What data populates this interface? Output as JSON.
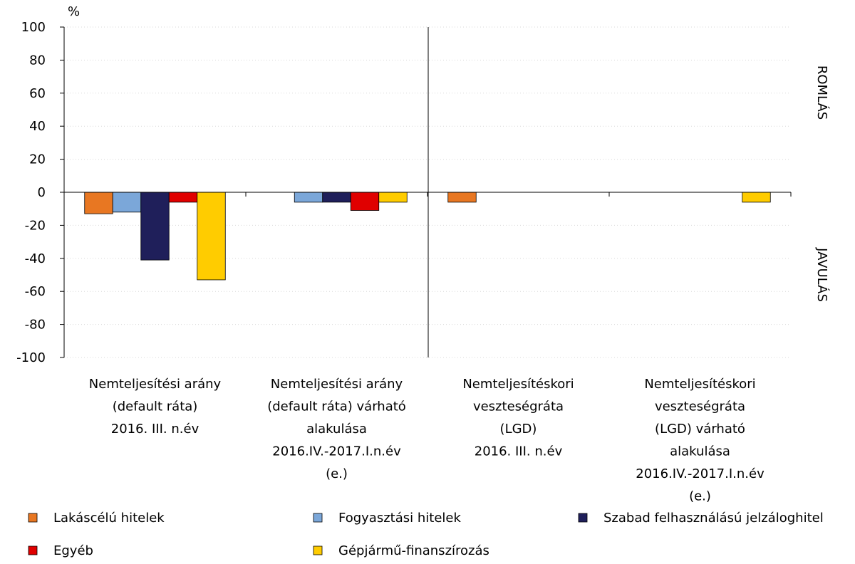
{
  "chart_data": {
    "type": "bar",
    "unit_label": "%",
    "side_labels": [
      "ROMLÁS",
      "JAVULÁS"
    ],
    "categories": [
      "Nemteljesítési arány\n(default ráta)\n2016. III. n.év",
      "Nemteljesítési arány\n(default ráta) várható\nalakulása\n2016.IV.-2017.I.n.év\n(e.)",
      "Nemteljesítéskori\nveszteségráta\n(LGD)\n2016. III. n.év",
      "Nemteljesítéskori\nveszteségráta\n(LGD) várható\nalakulása\n2016.IV.-2017.I.n.év\n(e.)"
    ],
    "series": [
      {
        "name": "Lakáscélú hitelek",
        "color": "#e87722",
        "values": [
          -13,
          0,
          -6,
          0
        ]
      },
      {
        "name": "Fogyasztási hitelek",
        "color": "#7ba7d9",
        "values": [
          -12,
          -6,
          0,
          0
        ]
      },
      {
        "name": "Szabad felhasználású jelzáloghitel",
        "color": "#1f1f5a",
        "values": [
          -41,
          -6,
          0,
          0
        ]
      },
      {
        "name": "Egyéb",
        "color": "#e00000",
        "values": [
          -6,
          -11,
          0,
          0
        ]
      },
      {
        "name": "Gépjármű-finanszírozás",
        "color": "#ffcc00",
        "values": [
          -53,
          -6,
          0,
          -6
        ]
      }
    ],
    "ylim": [
      -100,
      100
    ],
    "yticks": [
      -100,
      -80,
      -60,
      -40,
      -20,
      0,
      20,
      40,
      60,
      80,
      100
    ],
    "grid": true
  }
}
